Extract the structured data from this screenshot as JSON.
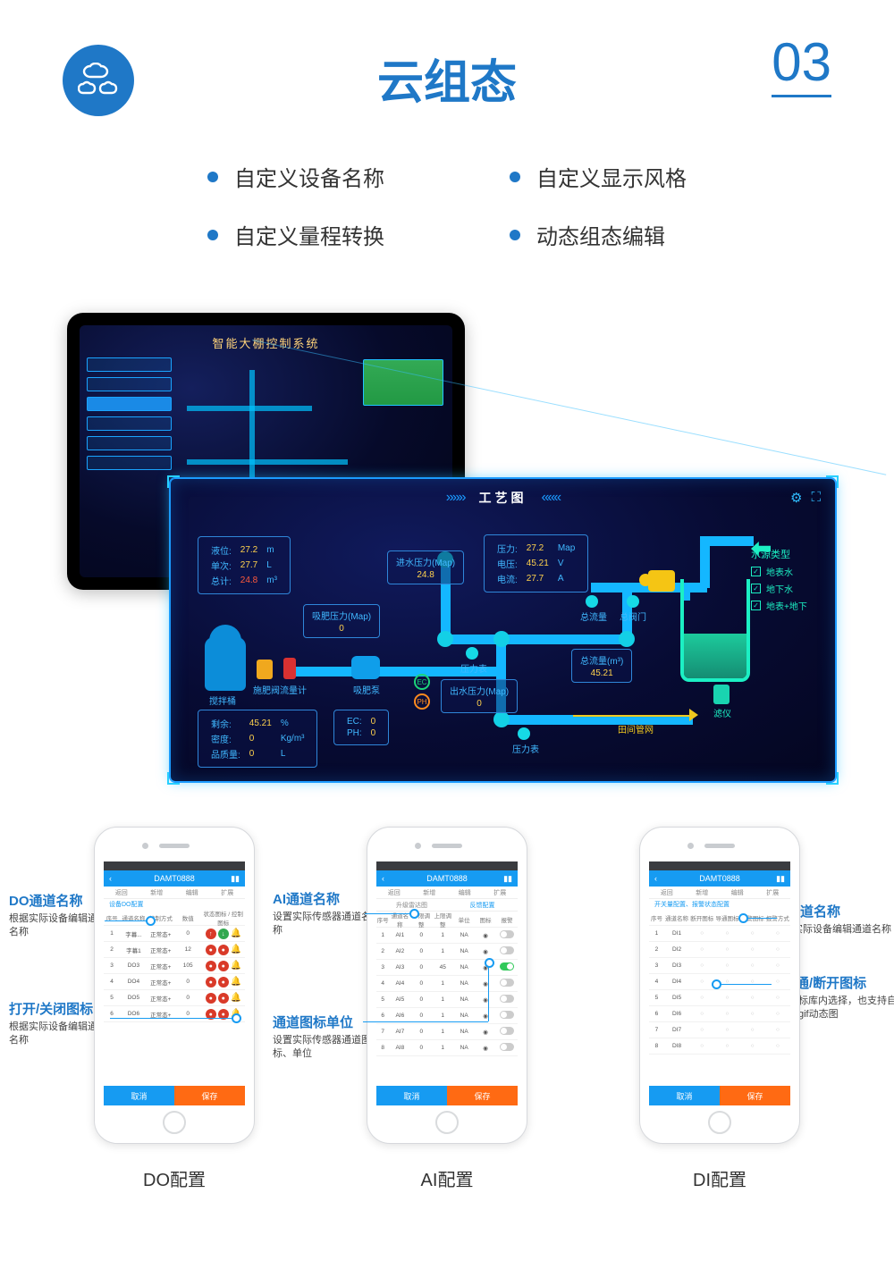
{
  "section": {
    "title": "云组态",
    "number": "03"
  },
  "features": {
    "col1": [
      "自定义设备名称",
      "自定义量程转换"
    ],
    "col2": [
      "自定义显示风格",
      "动态组态编辑"
    ]
  },
  "tablet": {
    "title": "智能大棚控制系统"
  },
  "popout": {
    "title": "工艺图",
    "cards": {
      "level": {
        "k1": "液位:",
        "v1": "27.2",
        "u1": "m",
        "k2": "单次:",
        "v2": "27.7",
        "u2": "L",
        "k3": "总计:",
        "v3": "24.8",
        "u3": "m³"
      },
      "pump": {
        "k1": "压力:",
        "v1": "27.2",
        "u1": "Map",
        "k2": "电压:",
        "v2": "45.21",
        "u2": "V",
        "k3": "电流:",
        "v3": "27.7",
        "u3": "A"
      },
      "residue": {
        "k1": "剩余:",
        "v1": "45.21",
        "u1": "%",
        "k2": "密度:",
        "v2": "0",
        "u2": "Kg/m³",
        "k3": "品质量:",
        "v3": "0",
        "u3": "L"
      },
      "ecph": {
        "k1": "EC:",
        "v1": "0",
        "k2": "PH:",
        "v2": "0"
      }
    },
    "boxes": {
      "in_pressure": {
        "label": "进水压力(Map)",
        "val": "24.8"
      },
      "suc_pressure": {
        "label": "吸肥压力(Map)",
        "val": "0"
      },
      "out_pressure": {
        "label": "出水压力(Map)",
        "val": "0"
      },
      "total_flow": {
        "label": "总流量(m³)",
        "val": "45.21"
      }
    },
    "labels": {
      "mixtank": "搅拌桶",
      "valve": "施肥阀",
      "flowmeter": "流量计",
      "sucPump": "吸肥泵",
      "pressure": "压力表",
      "totalflow": "总流量",
      "mainvalve": "总阀门",
      "filter": "滤仪",
      "field": "田间管网",
      "ec": "EC",
      "ph": "PH"
    },
    "watersource": {
      "title": "水源类型",
      "items": [
        "地表水",
        "地下水",
        "地表+地下"
      ]
    }
  },
  "phones": {
    "common": {
      "cancel": "取消",
      "save": "保存",
      "header_back": "‹",
      "header_sig": "▮▮"
    },
    "do": {
      "header": "DAMT0888",
      "tabs": [
        "返回",
        "新增",
        "编辑",
        "扩展"
      ],
      "subline": "设备DO配置",
      "thead": [
        "序号",
        "通道名称",
        "控制方式",
        "数值",
        "状态图标 / 控制图标"
      ],
      "rows": [
        [
          "1",
          "字幕...",
          "正常态+",
          "0"
        ],
        [
          "2",
          "字幕1",
          "正常态+",
          "12"
        ],
        [
          "3",
          "DO3",
          "正常态+",
          "105"
        ],
        [
          "4",
          "DO4",
          "正常态+",
          "0"
        ],
        [
          "5",
          "DO5",
          "正常态+",
          "0"
        ],
        [
          "6",
          "DO6",
          "正常态+",
          "0"
        ]
      ],
      "caption": "DO配置",
      "callouts": [
        {
          "title": "DO通道名称",
          "desc": "根据实际设备编辑通道名称"
        },
        {
          "title": "打开/关闭图标",
          "desc": "根据实际设备编辑通道名称"
        }
      ]
    },
    "ai": {
      "header": "DAMT0888",
      "tabs": [
        "返回",
        "新增",
        "编辑",
        "扩展"
      ],
      "tabs2": [
        "升级雷达图",
        "反馈配置"
      ],
      "thead": [
        "序号",
        "通道名称",
        "下限调整",
        "上限调整",
        "单位",
        "图标",
        "报警"
      ],
      "rows": [
        [
          "1",
          "AI1",
          "0",
          "1",
          "NA"
        ],
        [
          "2",
          "AI2",
          "0",
          "1",
          "NA"
        ],
        [
          "3",
          "AI3",
          "0",
          "45",
          "NA"
        ],
        [
          "4",
          "AI4",
          "0",
          "1",
          "NA"
        ],
        [
          "5",
          "AI5",
          "0",
          "1",
          "NA"
        ],
        [
          "6",
          "AI6",
          "0",
          "1",
          "NA"
        ],
        [
          "7",
          "AI7",
          "0",
          "1",
          "NA"
        ],
        [
          "8",
          "AI8",
          "0",
          "1",
          "NA"
        ]
      ],
      "caption": "AI配置",
      "callouts": [
        {
          "title": "AI通道名称",
          "desc": "设置实际传感器通道名称"
        },
        {
          "title": "通道图标单位",
          "desc": "设置实际传感器通道图标、单位"
        }
      ]
    },
    "di": {
      "header": "DAMT0888",
      "tabs": [
        "返回",
        "新增",
        "编辑",
        "扩展"
      ],
      "subline": "开关量配置、报警状态配置",
      "thead": [
        "序号",
        "通道名称",
        "断开图标",
        "导通图标",
        "报警图标",
        "报警方式"
      ],
      "rows": [
        [
          "1",
          "DI1"
        ],
        [
          "2",
          "DI2"
        ],
        [
          "3",
          "DI3"
        ],
        [
          "4",
          "DI4"
        ],
        [
          "5",
          "DI5"
        ],
        [
          "6",
          "DI6"
        ],
        [
          "7",
          "DI7"
        ],
        [
          "8",
          "DI8"
        ]
      ],
      "caption": "DI配置",
      "callouts": [
        {
          "title": "DI通道名称",
          "desc": "根据实际设备编辑通道名称"
        },
        {
          "title": "DI导通/断开图标",
          "desc": "可从图标库内选择，也支持自主上传gif动态图"
        }
      ]
    }
  }
}
